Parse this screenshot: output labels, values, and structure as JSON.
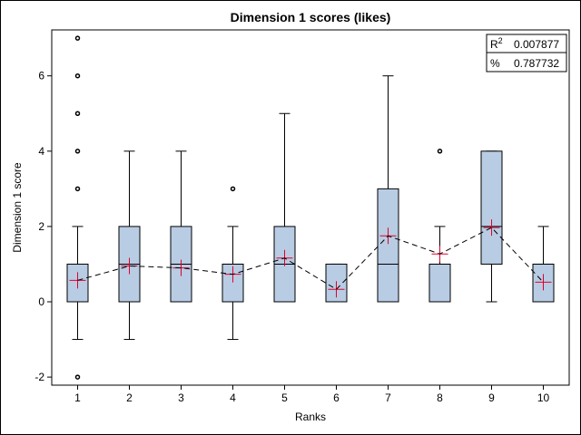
{
  "chart_data": {
    "type": "box",
    "title": "Dimension 1 scores (likes)",
    "xlabel": "Ranks",
    "ylabel": "Dimension 1 score",
    "ylim": [
      -2.2,
      7.2
    ],
    "yticks": [
      "-2",
      "0",
      "2",
      "4",
      "6"
    ],
    "ytick_values": [
      -2,
      0,
      2,
      4,
      6
    ],
    "categories": [
      "1",
      "2",
      "3",
      "4",
      "5",
      "6",
      "7",
      "8",
      "9",
      "10"
    ],
    "boxes": [
      {
        "category": "1",
        "whisker_low": -1,
        "q1": 0,
        "median": 0,
        "q3": 1,
        "whisker_high": 2,
        "mean": 0.57,
        "outliers": [
          -2,
          3,
          4,
          5,
          6,
          7
        ]
      },
      {
        "category": "2",
        "whisker_low": -1,
        "q1": 0,
        "median": 1,
        "q3": 2,
        "whisker_high": 4,
        "mean": 0.95,
        "outliers": []
      },
      {
        "category": "3",
        "whisker_low": 0,
        "q1": 0,
        "median": 1,
        "q3": 2,
        "whisker_high": 4,
        "mean": 0.9,
        "outliers": []
      },
      {
        "category": "4",
        "whisker_low": -1,
        "q1": 0,
        "median": 1,
        "q3": 1,
        "whisker_high": 2,
        "mean": 0.73,
        "outliers": [
          3
        ]
      },
      {
        "category": "5",
        "whisker_low": 0,
        "q1": 0,
        "median": 1,
        "q3": 2,
        "whisker_high": 5,
        "mean": 1.16,
        "outliers": []
      },
      {
        "category": "6",
        "whisker_low": 0,
        "q1": 0,
        "median": 0,
        "q3": 1,
        "whisker_high": 1,
        "mean": 0.33,
        "outliers": []
      },
      {
        "category": "7",
        "whisker_low": 0,
        "q1": 0,
        "median": 1,
        "q3": 3,
        "whisker_high": 6,
        "mean": 1.75,
        "outliers": []
      },
      {
        "category": "8",
        "whisker_low": 0,
        "q1": 0,
        "median": 1,
        "q3": 1,
        "whisker_high": 2,
        "mean": 1.27,
        "outliers": [
          4
        ]
      },
      {
        "category": "9",
        "whisker_low": 0,
        "q1": 1,
        "median": 2,
        "q3": 4,
        "whisker_high": 4,
        "mean": 1.97,
        "outliers": []
      },
      {
        "category": "10",
        "whisker_low": 0,
        "q1": 0,
        "median": 1,
        "q3": 1,
        "whisker_high": 2,
        "mean": 0.52,
        "outliers": []
      }
    ],
    "mean_line": {
      "style": "dashed",
      "color": "#000000"
    },
    "stats": {
      "r2_label": "R",
      "r2_superscript": "2",
      "r2_value": "0.007877",
      "pct_label": "%",
      "pct_value": "0.787732"
    },
    "colors": {
      "box_fill": "#b8cce4",
      "box_stroke": "#000000",
      "mean_marker": "#e0002a",
      "outlier": "#000000"
    },
    "grid": false
  }
}
